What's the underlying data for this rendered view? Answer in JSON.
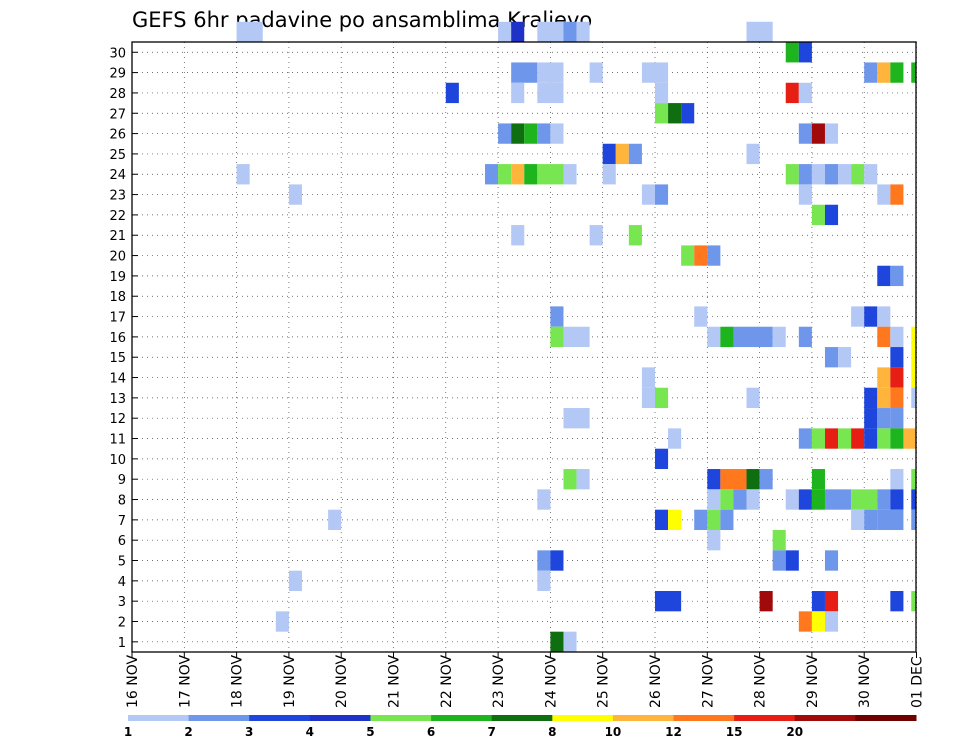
{
  "chart_data": {
    "type": "heatmap",
    "title": "GEFS 6hr padavine po ansamblima Kraljevo",
    "xlabel": "",
    "ylabel": "",
    "x_tick_labels": [
      "16 NOV",
      "17 NOV",
      "18 NOV",
      "19 NOV",
      "20 NOV",
      "21 NOV",
      "22 NOV",
      "23 NOV",
      "24 NOV",
      "25 NOV",
      "26 NOV",
      "27 NOV",
      "28 NOV",
      "29 NOV",
      "30 NOV",
      "01 DEC"
    ],
    "x_unit": "day (16 NOV = 0), 6-hour steps",
    "xlim": [
      0,
      15.1
    ],
    "y_tick_labels": [
      "1",
      "2",
      "3",
      "4",
      "5",
      "6",
      "7",
      "8",
      "9",
      "10",
      "11",
      "12",
      "13",
      "14",
      "15",
      "16",
      "17",
      "18",
      "19",
      "20",
      "21",
      "22",
      "23",
      "24",
      "25",
      "26",
      "27",
      "28",
      "29",
      "30"
    ],
    "ylim": [
      0,
      30
    ],
    "grid": true,
    "legend": {
      "position": "bottom",
      "labels": [
        "1",
        "2",
        "3",
        "4",
        "5",
        "6",
        "7",
        "8",
        "10",
        "12",
        "15",
        "20"
      ],
      "colors": [
        "#b4c8f5",
        "#6e96eb",
        "#1e46dc",
        "#1e32c8",
        "#78e650",
        "#1eb41e",
        "#0f6e0f",
        "#ffff00",
        "#ffb43c",
        "#ff781e",
        "#e61e14",
        "#a00a0a",
        "#6e0000"
      ]
    },
    "cells": [
      {
        "m": 30,
        "x": [
          [
            2.0,
            0.5,
            0
          ],
          [
            7.0,
            0.25,
            0
          ],
          [
            7.25,
            0.25,
            3
          ],
          [
            7.75,
            0.5,
            0
          ],
          [
            8.25,
            0.25,
            1
          ],
          [
            8.5,
            0.25,
            0
          ],
          [
            11.75,
            0.5,
            0
          ]
        ]
      },
      {
        "m": 29,
        "x": [
          [
            12.5,
            0.25,
            5
          ],
          [
            12.75,
            0.25,
            2
          ]
        ]
      },
      {
        "m": 28,
        "x": [
          [
            7.25,
            0.5,
            1
          ],
          [
            7.75,
            0.5,
            0
          ],
          [
            8.75,
            0.25,
            0
          ],
          [
            9.75,
            0.5,
            0
          ],
          [
            14.0,
            0.25,
            1
          ],
          [
            14.25,
            0.25,
            8
          ],
          [
            14.5,
            0.25,
            5
          ],
          [
            14.9,
            0.2,
            5
          ]
        ]
      },
      {
        "m": 27,
        "x": [
          [
            6.0,
            0.25,
            2
          ],
          [
            7.25,
            0.25,
            0
          ],
          [
            7.75,
            0.5,
            0
          ],
          [
            10.0,
            0.25,
            0
          ],
          [
            12.5,
            0.25,
            10
          ],
          [
            12.75,
            0.25,
            0
          ]
        ]
      },
      {
        "m": 26,
        "x": [
          [
            10.0,
            0.25,
            4
          ],
          [
            10.25,
            0.25,
            6
          ],
          [
            10.5,
            0.25,
            2
          ]
        ]
      },
      {
        "m": 25,
        "x": [
          [
            7.0,
            0.25,
            1
          ],
          [
            7.25,
            0.25,
            6
          ],
          [
            7.5,
            0.25,
            5
          ],
          [
            7.75,
            0.25,
            1
          ],
          [
            8.0,
            0.25,
            0
          ],
          [
            12.75,
            0.25,
            1
          ],
          [
            13.0,
            0.25,
            11
          ],
          [
            13.25,
            0.25,
            0
          ]
        ]
      },
      {
        "m": 24,
        "x": [
          [
            9.0,
            0.25,
            2
          ],
          [
            9.25,
            0.25,
            8
          ],
          [
            9.5,
            0.25,
            1
          ],
          [
            11.75,
            0.25,
            0
          ]
        ]
      },
      {
        "m": 23,
        "x": [
          [
            2.0,
            0.25,
            0
          ],
          [
            6.75,
            0.25,
            1
          ],
          [
            7.0,
            0.25,
            4
          ],
          [
            7.25,
            0.25,
            8
          ],
          [
            7.5,
            0.25,
            5
          ],
          [
            7.75,
            0.5,
            4
          ],
          [
            8.25,
            0.25,
            0
          ],
          [
            9.0,
            0.25,
            0
          ],
          [
            12.5,
            0.25,
            4
          ],
          [
            12.75,
            0.25,
            1
          ],
          [
            13.0,
            0.25,
            0
          ],
          [
            13.25,
            0.25,
            1
          ],
          [
            13.5,
            0.25,
            0
          ],
          [
            13.75,
            0.25,
            4
          ],
          [
            14.0,
            0.25,
            0
          ]
        ]
      },
      {
        "m": 22,
        "x": [
          [
            3.0,
            0.25,
            0
          ],
          [
            9.75,
            0.25,
            0
          ],
          [
            10.0,
            0.25,
            1
          ],
          [
            12.75,
            0.25,
            0
          ],
          [
            14.25,
            0.25,
            0
          ],
          [
            14.5,
            0.25,
            9
          ]
        ]
      },
      {
        "m": 21,
        "x": [
          [
            13.0,
            0.25,
            4
          ],
          [
            13.25,
            0.25,
            2
          ]
        ]
      },
      {
        "m": 20,
        "x": [
          [
            7.25,
            0.25,
            0
          ],
          [
            8.75,
            0.25,
            0
          ],
          [
            9.5,
            0.25,
            4
          ]
        ]
      },
      {
        "m": 19,
        "x": [
          [
            10.5,
            0.25,
            4
          ],
          [
            10.75,
            0.25,
            9
          ],
          [
            11.0,
            0.25,
            1
          ]
        ]
      },
      {
        "m": 18,
        "x": [
          [
            14.25,
            0.25,
            2
          ],
          [
            14.5,
            0.25,
            1
          ]
        ]
      },
      {
        "m": 16,
        "x": [
          [
            8.0,
            0.25,
            1
          ],
          [
            10.75,
            0.25,
            0
          ],
          [
            13.75,
            0.25,
            0
          ],
          [
            14.0,
            0.25,
            2
          ],
          [
            14.25,
            0.25,
            0
          ]
        ]
      },
      {
        "m": 15,
        "x": [
          [
            8.0,
            0.25,
            4
          ],
          [
            8.25,
            0.5,
            0
          ],
          [
            11.0,
            0.25,
            0
          ],
          [
            11.25,
            0.25,
            5
          ],
          [
            11.5,
            0.75,
            1
          ],
          [
            12.25,
            0.25,
            0
          ],
          [
            12.75,
            0.25,
            1
          ],
          [
            14.25,
            0.25,
            9
          ],
          [
            14.5,
            0.25,
            0
          ],
          [
            14.9,
            0.2,
            7
          ]
        ]
      },
      {
        "m": 14,
        "x": [
          [
            13.25,
            0.25,
            1
          ],
          [
            13.5,
            0.25,
            0
          ],
          [
            14.5,
            0.25,
            2
          ],
          [
            14.9,
            0.2,
            7
          ]
        ]
      },
      {
        "m": 13,
        "x": [
          [
            9.75,
            0.25,
            0
          ],
          [
            14.25,
            0.25,
            8
          ],
          [
            14.5,
            0.25,
            10
          ],
          [
            14.9,
            0.2,
            7
          ]
        ]
      },
      {
        "m": 12,
        "x": [
          [
            9.75,
            0.25,
            0
          ],
          [
            10.0,
            0.25,
            4
          ],
          [
            11.75,
            0.25,
            0
          ],
          [
            14.0,
            0.25,
            2
          ],
          [
            14.25,
            0.25,
            8
          ],
          [
            14.5,
            0.25,
            9
          ],
          [
            14.9,
            0.2,
            0
          ]
        ]
      },
      {
        "m": 11,
        "x": [
          [
            8.25,
            0.5,
            0
          ],
          [
            14.0,
            0.25,
            2
          ],
          [
            14.25,
            0.25,
            1
          ],
          [
            14.5,
            0.25,
            1
          ]
        ]
      },
      {
        "m": 10,
        "x": [
          [
            10.25,
            0.25,
            0
          ],
          [
            12.75,
            0.25,
            1
          ],
          [
            13.0,
            0.25,
            4
          ],
          [
            13.25,
            0.25,
            10
          ],
          [
            13.5,
            0.25,
            4
          ],
          [
            13.75,
            0.25,
            10
          ],
          [
            14.0,
            0.25,
            2
          ],
          [
            14.25,
            0.25,
            4
          ],
          [
            14.5,
            0.25,
            5
          ],
          [
            14.75,
            0.25,
            8
          ]
        ]
      },
      {
        "m": 9,
        "x": [
          [
            10.0,
            0.25,
            2
          ]
        ]
      },
      {
        "m": 8,
        "x": [
          [
            8.25,
            0.25,
            4
          ],
          [
            8.5,
            0.25,
            0
          ],
          [
            11.0,
            0.25,
            2
          ],
          [
            11.25,
            0.5,
            9
          ],
          [
            11.75,
            0.25,
            6
          ],
          [
            12.0,
            0.25,
            1
          ],
          [
            13.0,
            0.25,
            5
          ],
          [
            14.5,
            0.25,
            0
          ],
          [
            14.9,
            0.2,
            4
          ]
        ]
      },
      {
        "m": 7,
        "x": [
          [
            7.75,
            0.25,
            0
          ],
          [
            11.0,
            0.25,
            0
          ],
          [
            11.25,
            0.25,
            4
          ],
          [
            11.5,
            0.25,
            1
          ],
          [
            11.75,
            0.25,
            0
          ],
          [
            12.5,
            0.25,
            0
          ],
          [
            12.75,
            0.25,
            2
          ],
          [
            13.0,
            0.25,
            5
          ],
          [
            13.25,
            0.5,
            1
          ],
          [
            13.75,
            0.5,
            4
          ],
          [
            14.25,
            0.25,
            1
          ],
          [
            14.5,
            0.25,
            2
          ],
          [
            14.9,
            0.2,
            2
          ]
        ]
      },
      {
        "m": 6,
        "x": [
          [
            3.75,
            0.25,
            0
          ],
          [
            10.0,
            0.25,
            2
          ],
          [
            10.25,
            0.25,
            7
          ],
          [
            10.75,
            0.25,
            1
          ],
          [
            11.0,
            0.25,
            4
          ],
          [
            11.25,
            0.25,
            1
          ],
          [
            13.75,
            0.25,
            0
          ],
          [
            14.0,
            0.25,
            1
          ],
          [
            14.25,
            0.5,
            1
          ],
          [
            14.9,
            0.2,
            1
          ]
        ]
      },
      {
        "m": 5,
        "x": [
          [
            11.0,
            0.25,
            0
          ],
          [
            12.25,
            0.25,
            4
          ]
        ]
      },
      {
        "m": 4,
        "x": [
          [
            7.75,
            0.25,
            1
          ],
          [
            8.0,
            0.25,
            2
          ],
          [
            12.25,
            0.25,
            1
          ],
          [
            12.5,
            0.25,
            2
          ],
          [
            13.25,
            0.25,
            1
          ]
        ]
      },
      {
        "m": 3,
        "x": [
          [
            3.0,
            0.25,
            0
          ],
          [
            7.75,
            0.25,
            0
          ]
        ]
      },
      {
        "m": 2,
        "x": [
          [
            10.0,
            0.5,
            2
          ],
          [
            12.0,
            0.25,
            11
          ],
          [
            13.0,
            0.25,
            2
          ],
          [
            13.25,
            0.25,
            10
          ],
          [
            14.5,
            0.25,
            2
          ],
          [
            14.9,
            0.2,
            4
          ]
        ]
      },
      {
        "m": 1,
        "x": [
          [
            2.75,
            0.25,
            0
          ],
          [
            12.75,
            0.25,
            9
          ],
          [
            13.0,
            0.25,
            7
          ],
          [
            13.25,
            0.25,
            0
          ]
        ]
      },
      {
        "m": 0,
        "x": [
          [
            8.0,
            0.25,
            6
          ],
          [
            8.25,
            0.25,
            0
          ]
        ]
      }
    ]
  }
}
